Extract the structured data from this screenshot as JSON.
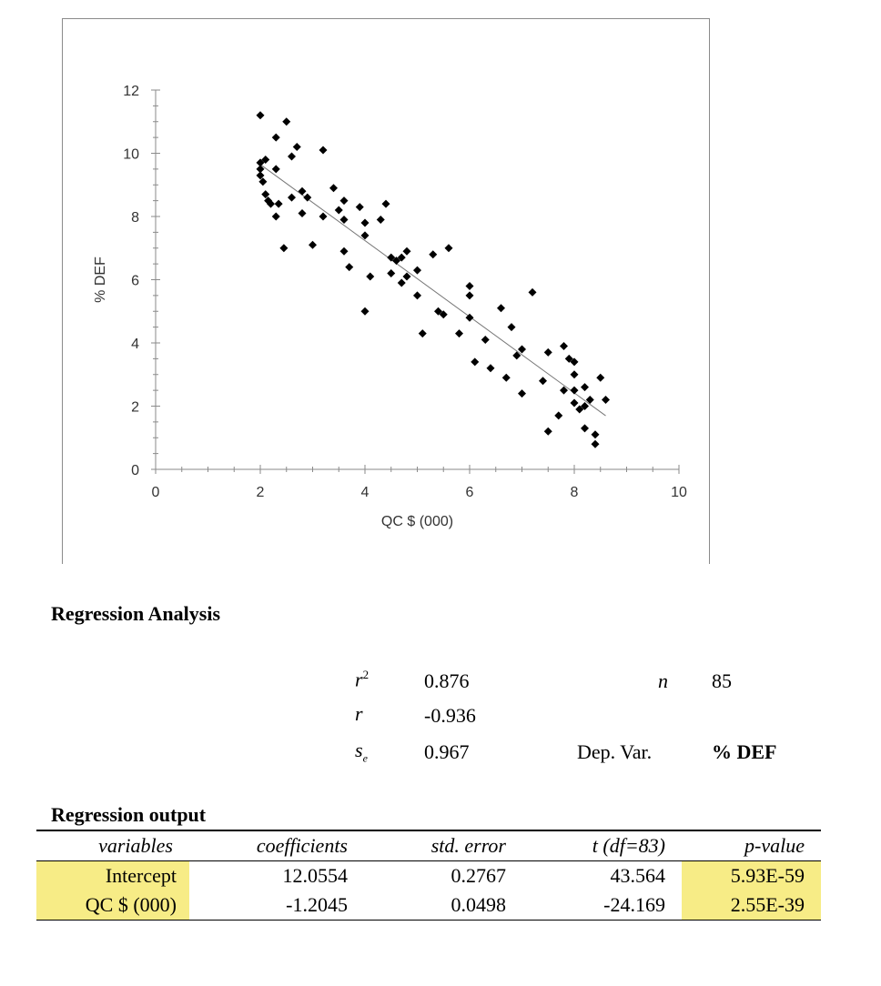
{
  "chart_data": {
    "type": "scatter",
    "title": "",
    "xlabel": "QC $ (000)",
    "ylabel": "% DEF",
    "xlim": [
      0,
      10
    ],
    "ylim": [
      0,
      12
    ],
    "xticks": [
      0,
      2,
      4,
      6,
      8,
      10
    ],
    "yticks": [
      0,
      2,
      4,
      6,
      8,
      10,
      12
    ],
    "grid": false,
    "trendline": {
      "intercept": 12.0554,
      "slope": -1.2045,
      "x_range": [
        2.0,
        8.6
      ]
    },
    "points": [
      [
        2.0,
        11.2
      ],
      [
        2.0,
        9.7
      ],
      [
        2.0,
        9.5
      ],
      [
        2.0,
        9.3
      ],
      [
        2.05,
        9.1
      ],
      [
        2.1,
        9.8
      ],
      [
        2.1,
        8.7
      ],
      [
        2.15,
        8.5
      ],
      [
        2.2,
        8.4
      ],
      [
        2.3,
        10.5
      ],
      [
        2.3,
        9.5
      ],
      [
        2.3,
        8.0
      ],
      [
        2.35,
        8.4
      ],
      [
        2.45,
        7.0
      ],
      [
        2.5,
        11.0
      ],
      [
        2.6,
        9.9
      ],
      [
        2.6,
        8.6
      ],
      [
        2.7,
        10.2
      ],
      [
        2.8,
        8.8
      ],
      [
        2.8,
        8.1
      ],
      [
        2.9,
        8.6
      ],
      [
        3.0,
        7.1
      ],
      [
        3.2,
        10.1
      ],
      [
        3.2,
        8.0
      ],
      [
        3.4,
        8.9
      ],
      [
        3.5,
        8.2
      ],
      [
        3.6,
        8.5
      ],
      [
        3.6,
        7.9
      ],
      [
        3.6,
        6.9
      ],
      [
        3.7,
        6.4
      ],
      [
        3.9,
        8.3
      ],
      [
        4.0,
        7.8
      ],
      [
        4.0,
        7.4
      ],
      [
        4.0,
        5.0
      ],
      [
        4.1,
        6.1
      ],
      [
        4.3,
        7.9
      ],
      [
        4.4,
        8.4
      ],
      [
        4.5,
        6.7
      ],
      [
        4.5,
        6.2
      ],
      [
        4.6,
        6.6
      ],
      [
        4.7,
        6.7
      ],
      [
        4.7,
        5.9
      ],
      [
        4.8,
        6.9
      ],
      [
        4.8,
        6.1
      ],
      [
        5.0,
        6.3
      ],
      [
        5.0,
        5.5
      ],
      [
        5.1,
        4.3
      ],
      [
        5.3,
        6.8
      ],
      [
        5.4,
        5.0
      ],
      [
        5.5,
        4.9
      ],
      [
        5.6,
        7.0
      ],
      [
        5.8,
        4.3
      ],
      [
        6.0,
        5.8
      ],
      [
        6.0,
        5.5
      ],
      [
        6.0,
        4.8
      ],
      [
        6.1,
        3.4
      ],
      [
        6.3,
        4.1
      ],
      [
        6.4,
        3.2
      ],
      [
        6.6,
        5.1
      ],
      [
        6.7,
        2.9
      ],
      [
        6.8,
        4.5
      ],
      [
        6.9,
        3.6
      ],
      [
        7.0,
        3.8
      ],
      [
        7.0,
        2.4
      ],
      [
        7.2,
        5.6
      ],
      [
        7.4,
        2.8
      ],
      [
        7.5,
        3.7
      ],
      [
        7.5,
        1.2
      ],
      [
        7.7,
        1.7
      ],
      [
        7.8,
        3.9
      ],
      [
        7.8,
        2.5
      ],
      [
        7.9,
        3.5
      ],
      [
        8.0,
        3.4
      ],
      [
        8.0,
        3.0
      ],
      [
        8.0,
        2.5
      ],
      [
        8.0,
        2.1
      ],
      [
        8.1,
        1.9
      ],
      [
        8.2,
        2.6
      ],
      [
        8.2,
        1.3
      ],
      [
        8.3,
        2.2
      ],
      [
        8.4,
        1.1
      ],
      [
        8.4,
        0.8
      ],
      [
        8.5,
        2.9
      ],
      [
        8.6,
        2.2
      ],
      [
        8.2,
        2.0
      ]
    ]
  },
  "regression": {
    "title": "Regression Analysis",
    "r2_label": "r",
    "r2_sup": "2",
    "r2_value": "0.876",
    "r_label": "r",
    "r_value": "-0.936",
    "se_label": "s",
    "se_sub": "e",
    "se_value": "0.967",
    "n_label": "n",
    "n_value": "85",
    "dep_label": "Dep. Var.",
    "dep_value": "% DEF"
  },
  "output": {
    "title": "Regression output",
    "headers": [
      "variables",
      "coefficients",
      "std. error",
      "t (df=83)",
      "p-value"
    ],
    "rows": [
      [
        "Intercept",
        "12.0554",
        "0.2767",
        "43.564",
        "5.93E-59"
      ],
      [
        "QC $ (000)",
        "-1.2045",
        "0.0498",
        "-24.169",
        "2.55E-39"
      ]
    ],
    "highlight_color": "#f7ec86"
  }
}
